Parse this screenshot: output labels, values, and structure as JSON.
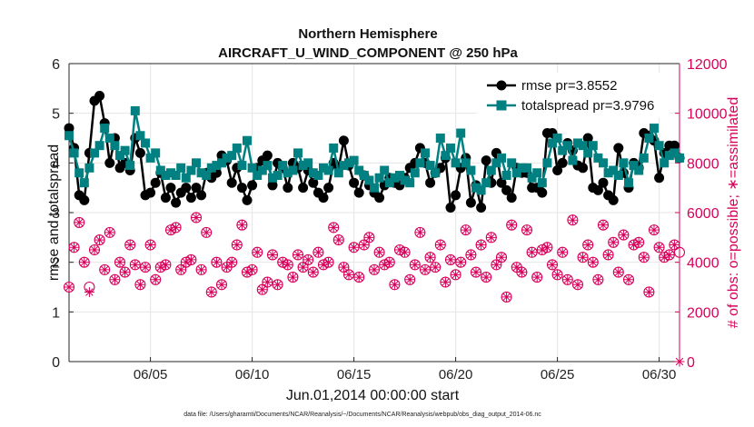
{
  "colors": {
    "rmse": "#000000",
    "totalspread": "#008080",
    "obs": "#d9005b",
    "grid": "#e6e6e6",
    "axis": "#262626"
  },
  "chart_data": {
    "type": "line",
    "title_lines": [
      "Northern Hemisphere",
      "AIRCRAFT_U_WIND_COMPONENT @ 250 hPa"
    ],
    "xlabel": "Jun.01,2014 00:00:00 start",
    "ylabel_left": "rmse and totalspread",
    "ylabel_right": "# of obs: o=possible; ∗=assimilated",
    "x_ticks": [
      "06/05",
      "06/10",
      "06/15",
      "06/20",
      "06/25",
      "06/30"
    ],
    "x_tick_days": [
      5,
      10,
      15,
      20,
      25,
      30
    ],
    "xlim_days": [
      1,
      31
    ],
    "ylim_left": [
      0,
      6
    ],
    "y_ticks_left": [
      "0",
      "1",
      "2",
      "3",
      "4",
      "5",
      "6"
    ],
    "ylim_right": [
      0,
      12000
    ],
    "y_ticks_right": [
      "0",
      "2000",
      "4000",
      "6000",
      "8000",
      "10000",
      "12000"
    ],
    "grid": true,
    "legend_position": "top-right",
    "legend": [
      "rmse pr=3.8552",
      "totalspread pr=3.9796"
    ],
    "footnote": "data file: /Users/gharamti/Documents/NCAR/Reanalysis/~/Documents/NCAR/Reanalysis/webpub/obs_diag_output_2014-06.nc",
    "x_days": [
      1.0,
      1.25,
      1.5,
      1.75,
      2.0,
      2.25,
      2.5,
      2.75,
      3.0,
      3.25,
      3.5,
      3.75,
      4.0,
      4.25,
      4.5,
      4.75,
      5.0,
      5.25,
      5.5,
      5.75,
      6.0,
      6.25,
      6.5,
      6.75,
      7.0,
      7.25,
      7.5,
      7.75,
      8.0,
      8.25,
      8.5,
      8.75,
      9.0,
      9.25,
      9.5,
      9.75,
      10.0,
      10.25,
      10.5,
      10.75,
      11.0,
      11.25,
      11.5,
      11.75,
      12.0,
      12.25,
      12.5,
      12.75,
      13.0,
      13.25,
      13.5,
      13.75,
      14.0,
      14.25,
      14.5,
      14.75,
      15.0,
      15.25,
      15.5,
      15.75,
      16.0,
      16.25,
      16.5,
      16.75,
      17.0,
      17.25,
      17.5,
      17.75,
      18.0,
      18.25,
      18.5,
      18.75,
      19.0,
      19.25,
      19.5,
      19.75,
      20.0,
      20.25,
      20.5,
      20.75,
      21.0,
      21.25,
      21.5,
      21.75,
      22.0,
      22.25,
      22.5,
      22.75,
      23.0,
      23.25,
      23.5,
      23.75,
      24.0,
      24.25,
      24.5,
      24.75,
      25.0,
      25.25,
      25.5,
      25.75,
      26.0,
      26.25,
      26.5,
      26.75,
      27.0,
      27.25,
      27.5,
      27.75,
      28.0,
      28.25,
      28.5,
      28.75,
      29.0,
      29.25,
      29.5,
      29.75,
      30.0,
      30.25,
      30.5,
      30.75,
      31.0
    ],
    "series": [
      {
        "name": "rmse pr=3.8552",
        "axis": "left",
        "values": [
          4.7,
          4.3,
          3.35,
          3.25,
          4.2,
          5.25,
          5.35,
          4.8,
          4.0,
          4.5,
          3.9,
          4.0,
          3.85,
          4.5,
          4.2,
          3.35,
          3.4,
          3.6,
          3.8,
          3.3,
          3.5,
          3.2,
          3.4,
          3.5,
          3.3,
          3.5,
          3.35,
          3.8,
          3.7,
          3.8,
          4.15,
          4.05,
          3.6,
          3.9,
          3.5,
          3.25,
          3.55,
          3.9,
          4.05,
          4.15,
          3.55,
          4.0,
          3.9,
          3.5,
          4.0,
          3.9,
          3.5,
          3.85,
          3.6,
          3.4,
          3.3,
          3.5,
          4.0,
          3.9,
          4.45,
          3.95,
          3.6,
          3.4,
          3.75,
          3.55,
          3.4,
          3.3,
          3.55,
          3.7,
          3.6,
          3.55,
          3.7,
          3.9,
          4.0,
          4.3,
          4.0,
          3.6,
          3.8,
          3.9,
          4.1,
          3.1,
          3.35,
          3.9,
          4.1,
          3.2,
          3.55,
          3.1,
          4.05,
          3.6,
          4.2,
          3.6,
          3.45,
          3.3,
          3.9,
          3.8,
          3.8,
          3.5,
          3.5,
          3.4,
          4.6,
          4.6,
          3.85,
          4.0,
          4.4,
          4.25,
          3.95,
          3.9,
          4.5,
          3.5,
          3.45,
          3.6,
          3.35,
          3.25,
          4.3,
          3.8,
          3.5,
          4.0,
          3.9,
          4.6,
          4.55,
          4.45,
          3.7,
          4.2,
          4.35,
          4.35,
          4.1
        ]
      },
      {
        "name": "totalspread pr=3.9796",
        "axis": "left",
        "values": [
          4.55,
          4.2,
          3.8,
          3.6,
          3.9,
          4.2,
          4.35,
          4.7,
          4.5,
          4.35,
          4.15,
          4.25,
          3.95,
          5.05,
          4.55,
          4.4,
          4.1,
          4.2,
          3.85,
          3.75,
          3.8,
          3.75,
          3.9,
          3.7,
          3.85,
          4.0,
          3.8,
          3.75,
          3.9,
          3.95,
          4.0,
          4.1,
          4.15,
          4.3,
          3.95,
          4.45,
          3.9,
          3.75,
          3.85,
          3.95,
          3.7,
          3.75,
          3.95,
          3.8,
          3.85,
          4.2,
          3.95,
          4.0,
          3.8,
          3.75,
          3.9,
          3.85,
          4.3,
          3.8,
          3.95,
          4.0,
          4.05,
          3.85,
          3.75,
          3.65,
          3.5,
          3.7,
          3.85,
          3.6,
          3.7,
          3.75,
          3.65,
          3.6,
          3.8,
          4.0,
          4.2,
          3.95,
          3.8,
          4.5,
          4.15,
          4.3,
          4.0,
          4.6,
          4.0,
          3.85,
          3.5,
          3.45,
          3.6,
          3.85,
          4.0,
          4.1,
          3.75,
          4.0,
          3.8,
          3.9,
          3.9,
          3.7,
          3.8,
          3.6,
          4.0,
          4.4,
          4.5,
          4.25,
          4.35,
          4.05,
          4.4,
          4.35,
          4.2,
          4.35,
          4.1,
          4.0,
          3.8,
          3.85,
          3.75,
          4.0,
          3.6,
          3.95,
          3.85,
          4.1,
          4.5,
          4.7,
          4.35,
          4.0,
          4.15,
          4.2,
          4.1
        ]
      },
      {
        "name": "possible",
        "axis": "right",
        "values": [
          3000,
          4600,
          5600,
          4000,
          3000,
          4500,
          4900,
          3700,
          5200,
          3300,
          4000,
          3600,
          4700,
          3900,
          3100,
          3800,
          4700,
          3300,
          3800,
          3900,
          5300,
          5400,
          3700,
          4000,
          4100,
          5800,
          3700,
          5200,
          2800,
          4000,
          3100,
          3800,
          4000,
          4700,
          5500,
          3600,
          3700,
          4400,
          2900,
          3200,
          4300,
          3100,
          4000,
          3900,
          3400,
          4300,
          3800,
          4100,
          3600,
          4400,
          3900,
          4000,
          5400,
          4900,
          3800,
          3500,
          4600,
          3400,
          4700,
          5000,
          3700,
          4400,
          3900,
          4000,
          3100,
          4500,
          4400,
          3300,
          3900,
          5200,
          3700,
          4200,
          3800,
          4700,
          3200,
          4100,
          3500,
          4000,
          5300,
          4300,
          3600,
          4700,
          3400,
          5000,
          3900,
          4200,
          2600,
          5500,
          3800,
          3600,
          5300,
          4400,
          3400,
          4500,
          4600,
          3900,
          3500,
          4400,
          3300,
          5700,
          3100,
          4200,
          4700,
          4000,
          3300,
          5500,
          4300,
          4800,
          3600,
          5100,
          3300,
          4700,
          4800,
          4200,
          2800,
          5300,
          4600,
          4200,
          4300,
          4700,
          4400
        ]
      },
      {
        "name": "assimilated",
        "axis": "right",
        "values": [
          3000,
          4600,
          5600,
          4000,
          2800,
          4500,
          4900,
          3700,
          5200,
          3300,
          4000,
          3600,
          4700,
          3900,
          3100,
          3800,
          4700,
          3300,
          3800,
          3900,
          5300,
          5400,
          3700,
          4000,
          4100,
          5800,
          3700,
          5200,
          2800,
          4000,
          3100,
          3800,
          4000,
          4700,
          5500,
          3600,
          3700,
          4400,
          2900,
          3200,
          4300,
          3100,
          4000,
          3900,
          3400,
          4300,
          3800,
          4100,
          3600,
          4400,
          3900,
          4000,
          5400,
          4900,
          3800,
          3500,
          4600,
          3400,
          4700,
          5000,
          3700,
          4400,
          3900,
          4000,
          3100,
          4500,
          4400,
          3300,
          3900,
          5200,
          3700,
          4200,
          3800,
          4700,
          3200,
          4100,
          3500,
          4000,
          5300,
          4300,
          3600,
          4700,
          3400,
          5000,
          3900,
          4200,
          2600,
          5500,
          3800,
          3600,
          5300,
          4400,
          3400,
          4500,
          4600,
          3900,
          3500,
          4400,
          3300,
          5700,
          3100,
          4200,
          4700,
          4000,
          3300,
          5500,
          4300,
          4800,
          3600,
          5100,
          3300,
          4700,
          4800,
          4200,
          2800,
          5300,
          4600,
          4200,
          4300,
          4700,
          0
        ]
      }
    ]
  }
}
